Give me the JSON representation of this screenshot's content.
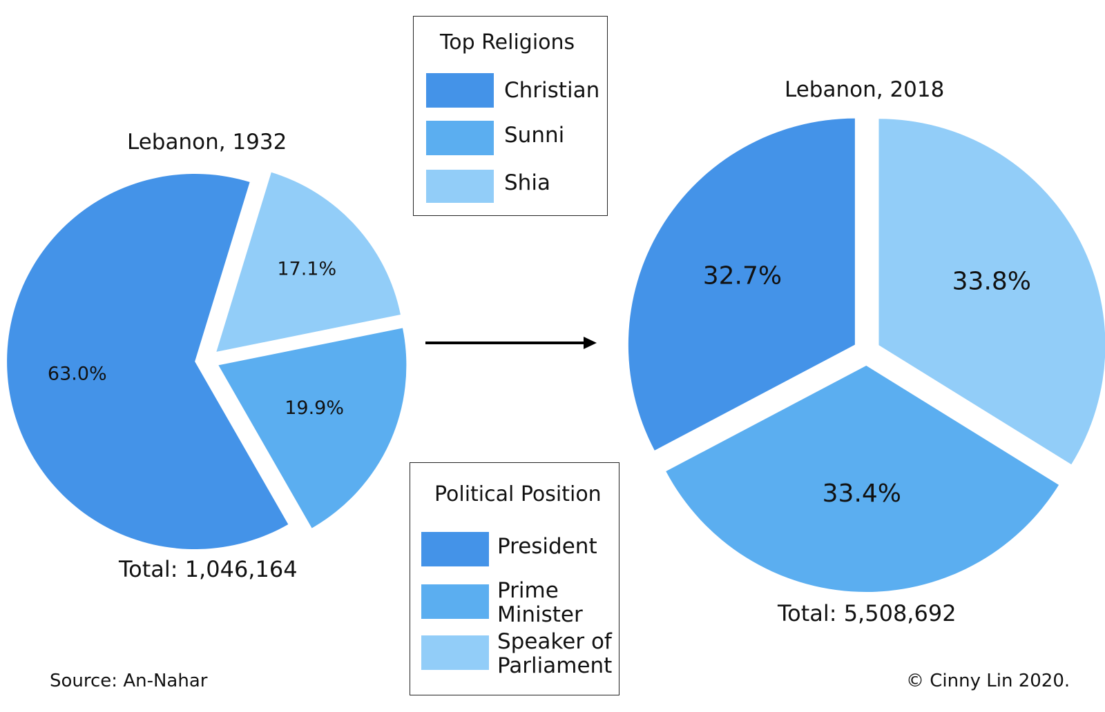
{
  "chart_data": [
    {
      "type": "pie",
      "title": "Lebanon, 1932",
      "categories": [
        "Christian",
        "Shia",
        "Sunni"
      ],
      "values": [
        63.0,
        17.1,
        19.9
      ],
      "value_labels": [
        "63.0%",
        "17.1%",
        "19.9%"
      ],
      "total": "Total: 1,046,164",
      "exploded": true
    },
    {
      "type": "pie",
      "title": "Lebanon, 2018",
      "categories": [
        "Christian",
        "Shia",
        "Sunni"
      ],
      "values": [
        32.7,
        33.8,
        33.4
      ],
      "value_labels": [
        "32.7%",
        "33.8%",
        "33.4%"
      ],
      "total": "Total: 5,508,692",
      "exploded": true
    }
  ],
  "colors": {
    "Christian": "#4493e8",
    "Sunni": "#5baef0",
    "Shia": "#92cdf8"
  },
  "legends": {
    "religions": {
      "title": "Top Religions",
      "items": [
        {
          "label": "Christian",
          "color": "#4493e8"
        },
        {
          "label": "Sunni",
          "color": "#5baef0"
        },
        {
          "label": "Shia",
          "color": "#92cdf8"
        }
      ]
    },
    "political": {
      "title": "Political Position",
      "items": [
        {
          "label": "President",
          "color": "#4493e8"
        },
        {
          "label": "Prime Minister",
          "color": "#5baef0"
        },
        {
          "label": "Speaker of Parliament",
          "color": "#92cdf8"
        }
      ]
    }
  },
  "source": "Source: An-Nahar",
  "copyright": "© Cinny Lin 2020."
}
